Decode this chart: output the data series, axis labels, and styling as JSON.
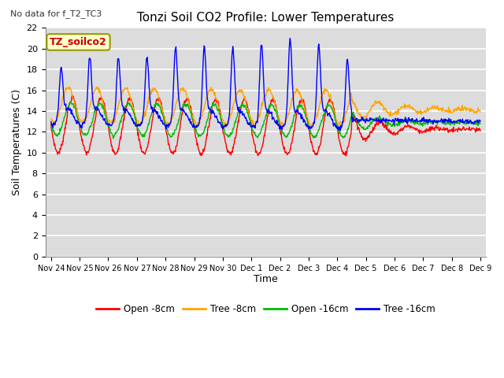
{
  "title": "Tonzi Soil CO2 Profile: Lower Temperatures",
  "subtitle": "No data for f_T2_TC3",
  "ylabel": "Soil Temperatures (C)",
  "xlabel": "Time",
  "annotation": "TZ_soilco2",
  "ylim": [
    0,
    22
  ],
  "yticks": [
    0,
    2,
    4,
    6,
    8,
    10,
    12,
    14,
    16,
    18,
    20,
    22
  ],
  "xtick_labels": [
    "Nov 24",
    "Nov 25",
    "Nov 26",
    "Nov 27",
    "Nov 28",
    "Nov 29",
    "Nov 30",
    "Dec 1",
    "Dec 2",
    "Dec 3",
    "Dec 4",
    "Dec 5",
    "Dec 6",
    "Dec 7",
    "Dec 8",
    "Dec 9"
  ],
  "legend_labels": [
    "Open -8cm",
    "Tree -8cm",
    "Open -16cm",
    "Tree -16cm"
  ],
  "legend_colors": [
    "#ff0000",
    "#ffa500",
    "#00bb00",
    "#0000ff"
  ],
  "bg_color": "#dcdcdc",
  "grid_color": "#ffffff",
  "n_points": 960
}
